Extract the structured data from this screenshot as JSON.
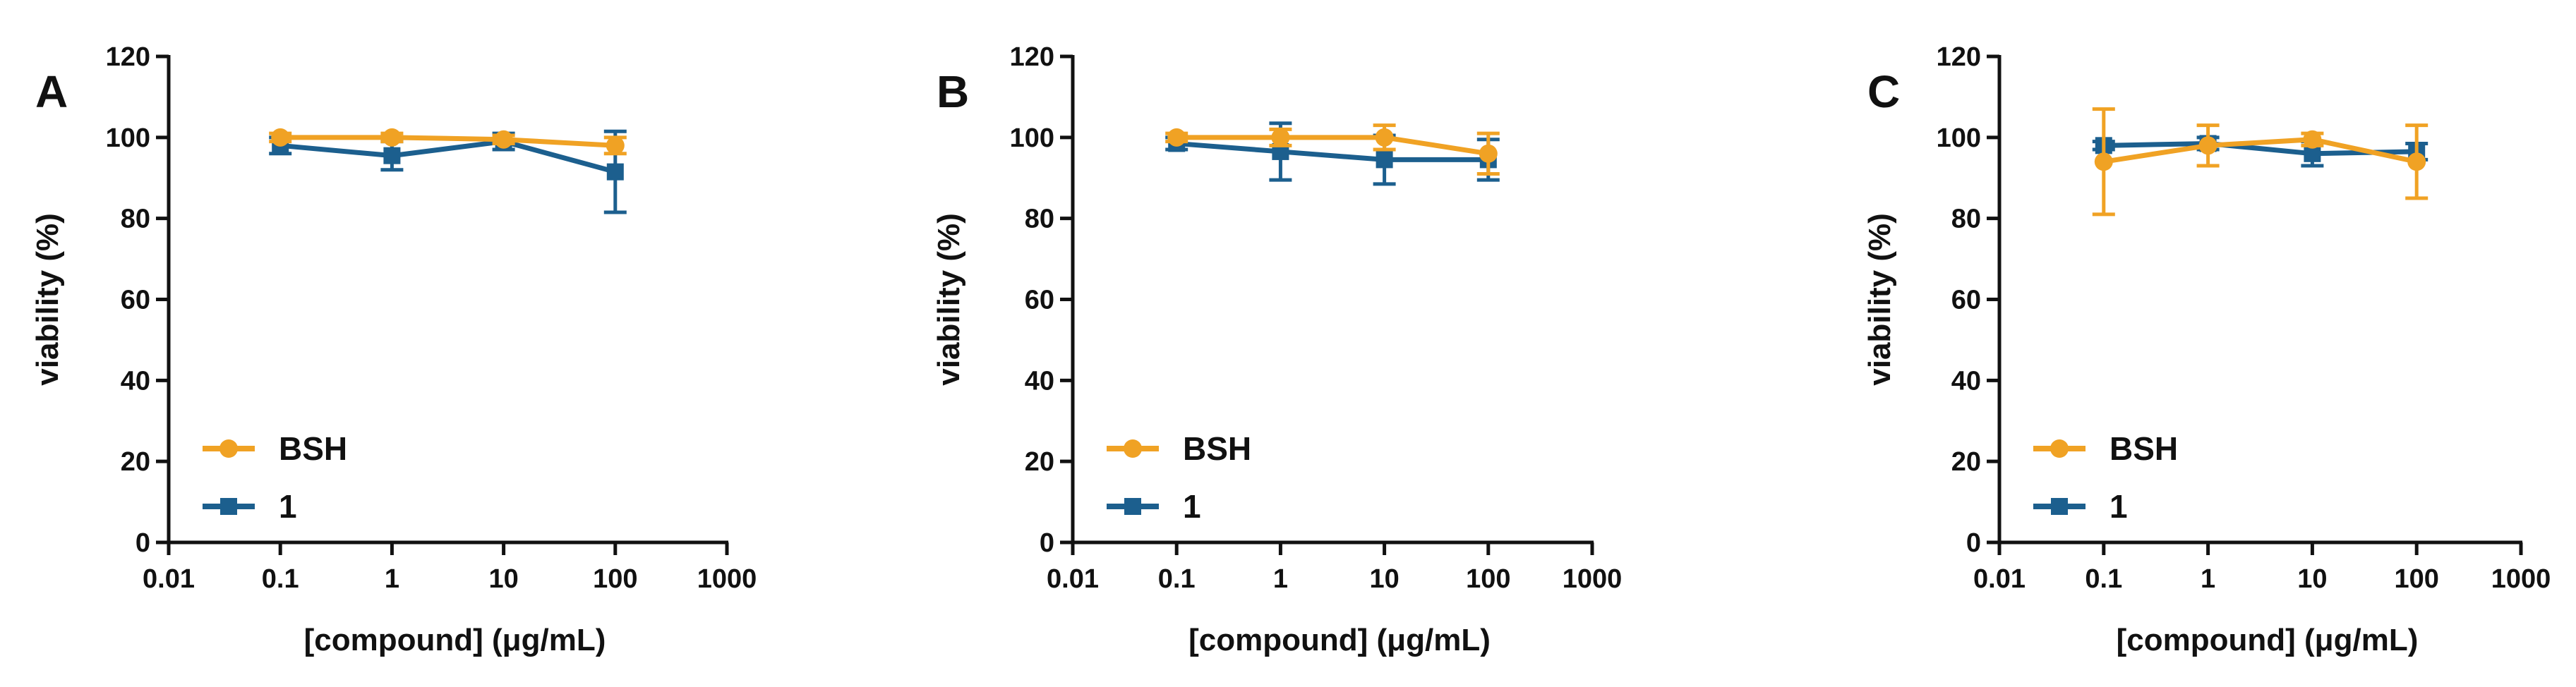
{
  "chart_data": [
    {
      "panel": "A",
      "type": "line",
      "xlabel": "[compound] (μg/mL)",
      "ylabel": "viability (%)",
      "xscale": "log",
      "xlim": [
        0.01,
        1000
      ],
      "ylim": [
        0,
        120
      ],
      "xticks": [
        "0.01",
        "0.1",
        "1",
        "10",
        "100",
        "1000"
      ],
      "yticks": [
        "0",
        "20",
        "40",
        "60",
        "80",
        "100",
        "120"
      ],
      "x": [
        0.1,
        1,
        10,
        100
      ],
      "legend_position": "bottom-left",
      "series": [
        {
          "name": "BSH",
          "color": "#F0A224",
          "marker": "circle",
          "values": [
            100,
            100,
            99.5,
            98
          ],
          "errors": [
            1,
            1,
            1,
            2
          ]
        },
        {
          "name": "1",
          "color": "#1C5F8E",
          "marker": "square",
          "values": [
            98,
            95.5,
            99,
            91.5
          ],
          "errors": [
            2,
            3.5,
            2,
            10
          ]
        }
      ]
    },
    {
      "panel": "B",
      "type": "line",
      "xlabel": "[compound] (μg/mL)",
      "ylabel": "viability (%)",
      "xscale": "log",
      "xlim": [
        0.01,
        1000
      ],
      "ylim": [
        0,
        120
      ],
      "xticks": [
        "0.01",
        "0.1",
        "1",
        "10",
        "100",
        "1000"
      ],
      "yticks": [
        "0",
        "20",
        "40",
        "60",
        "80",
        "100",
        "120"
      ],
      "x": [
        0.1,
        1,
        10,
        100
      ],
      "legend_position": "bottom-left",
      "series": [
        {
          "name": "BSH",
          "color": "#F0A224",
          "marker": "circle",
          "values": [
            100,
            100,
            100,
            96
          ],
          "errors": [
            1,
            2,
            3,
            5
          ]
        },
        {
          "name": "1",
          "color": "#1C5F8E",
          "marker": "square",
          "values": [
            98.5,
            96.5,
            94.5,
            94.5
          ],
          "errors": [
            1.5,
            7,
            6,
            5
          ]
        }
      ]
    },
    {
      "panel": "C",
      "type": "line",
      "xlabel": "[compound] (μg/mL)",
      "ylabel": "viability (%)",
      "xscale": "log",
      "xlim": [
        0.01,
        1000
      ],
      "ylim": [
        0,
        120
      ],
      "xticks": [
        "0.01",
        "0.1",
        "1",
        "10",
        "100",
        "1000"
      ],
      "yticks": [
        "0",
        "20",
        "40",
        "60",
        "80",
        "100",
        "120"
      ],
      "x": [
        0.1,
        1,
        10,
        100
      ],
      "legend_position": "bottom-left",
      "series": [
        {
          "name": "BSH",
          "color": "#F0A224",
          "marker": "circle",
          "values": [
            94,
            98,
            99.5,
            94
          ],
          "errors": [
            13,
            5,
            1.5,
            9
          ]
        },
        {
          "name": "1",
          "color": "#1C5F8E",
          "marker": "square",
          "values": [
            98,
            98.5,
            96,
            96.5
          ],
          "errors": [
            1,
            1.5,
            3,
            2
          ]
        }
      ]
    }
  ]
}
